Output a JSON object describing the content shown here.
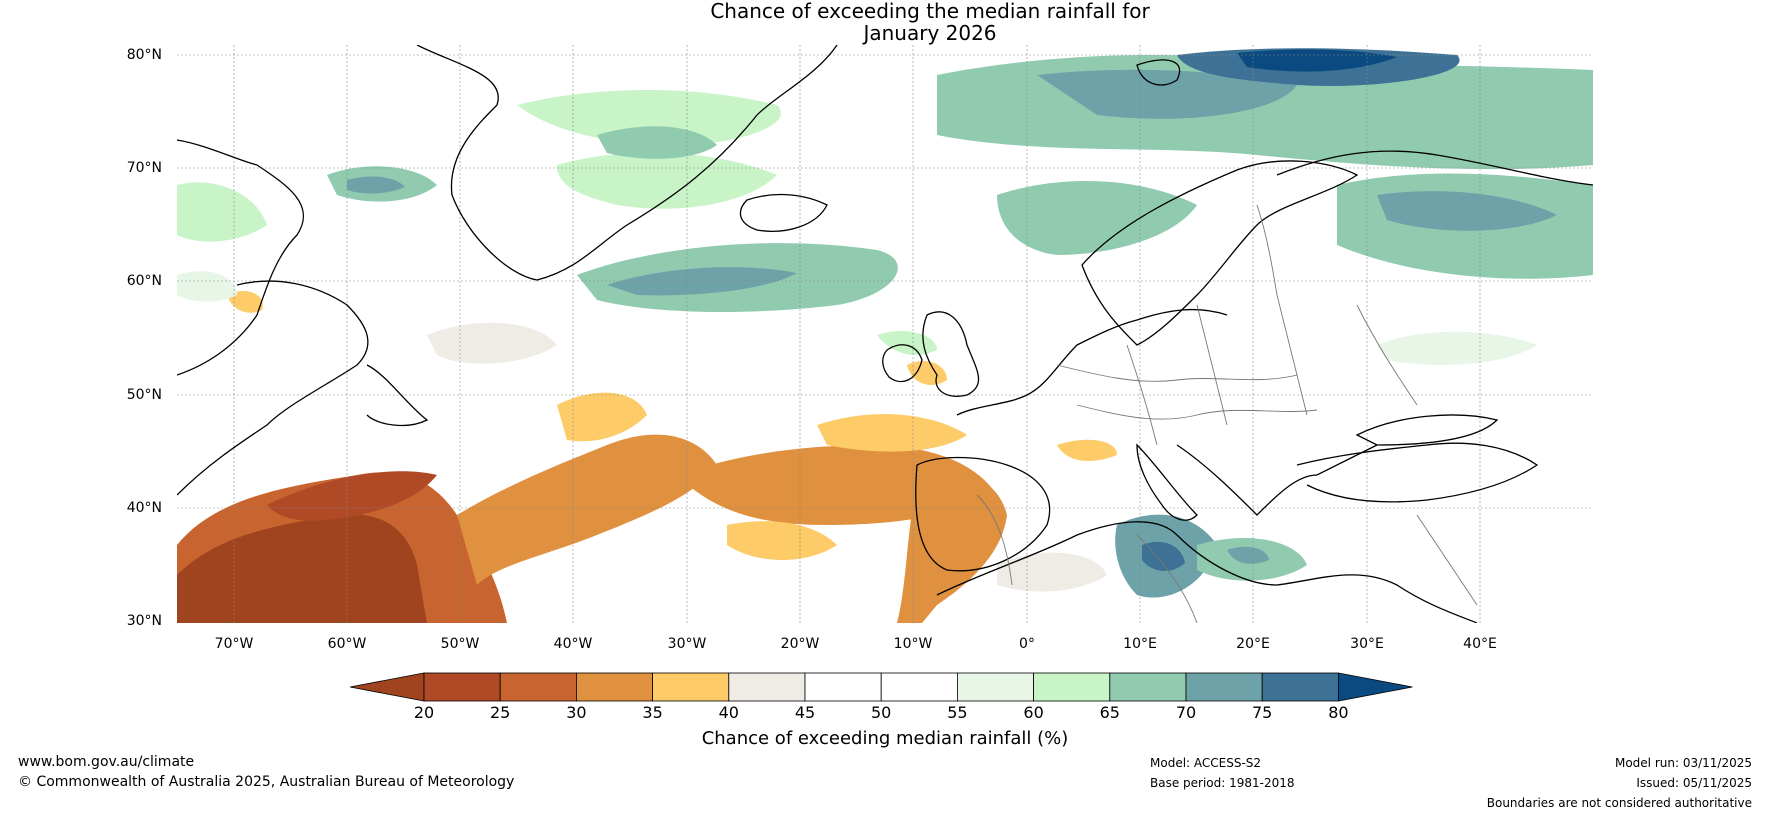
{
  "header": {
    "title_line1": "Chance of exceeding the median rainfall for",
    "title_line2": "January 2026"
  },
  "map": {
    "lat_labels": [
      "80°N",
      "70°N",
      "60°N",
      "50°N",
      "40°N",
      "30°N"
    ],
    "lon_labels": [
      "70°W",
      "60°W",
      "50°W",
      "40°W",
      "30°W",
      "20°W",
      "10°W",
      "0°",
      "10°E",
      "20°E",
      "30°E",
      "40°E"
    ],
    "lat_range": [
      30,
      81
    ],
    "lon_range": [
      -75,
      50
    ]
  },
  "colorbar": {
    "ticks": [
      "20",
      "25",
      "30",
      "35",
      "40",
      "45",
      "50",
      "55",
      "60",
      "65",
      "70",
      "75",
      "80"
    ],
    "colors": [
      "#a0441f",
      "#b04a26",
      "#c8642f",
      "#e0913f",
      "#fdcb68",
      "#efece6",
      "#ffffff",
      "#ffffff",
      "#e8f6e8",
      "#c8f4c8",
      "#90cbb0",
      "#6da3a8",
      "#3d7296",
      "#0a4a80"
    ],
    "label": "Chance of exceeding median rainfall (%)"
  },
  "footer": {
    "website": "www.bom.gov.au/climate",
    "copyright": "© Commonwealth of Australia 2025, Australian Bureau of Meteorology",
    "model": "Model: ACCESS-S2",
    "base_period": "Base period: 1981-2018",
    "model_run": "Model run: 03/11/2025",
    "issued": "Issued: 05/11/2025",
    "disclaimer": "Boundaries are not considered authoritative"
  }
}
